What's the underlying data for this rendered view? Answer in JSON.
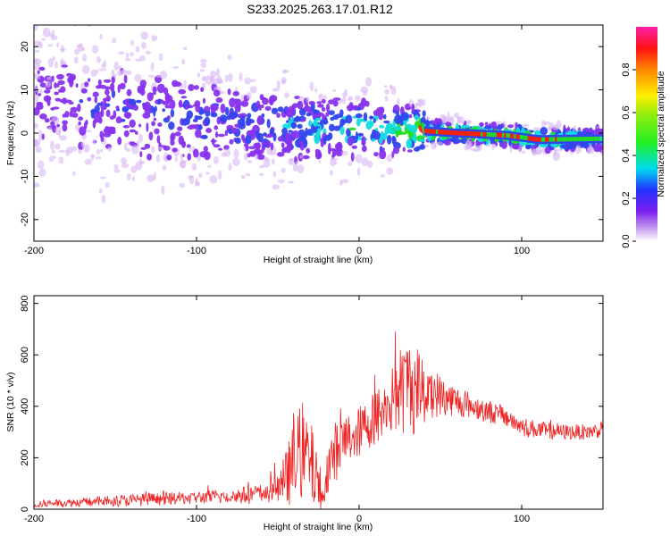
{
  "title": "S233.2025.263.17.01.R12",
  "colors": {
    "line": "#ee2222",
    "frame": "#000000",
    "spec_ridge": "#ff2200",
    "spec_green": "#22dd22",
    "spec_cyan": "#11dddd",
    "spec_blue": "#3344ee",
    "spec_violet": "#8833ee",
    "spec_pale": "#d8b8f4"
  },
  "chart_data": [
    {
      "type": "heatmap",
      "xlabel": "Height of straight line (km)",
      "ylabel": "Frequency (Hz)",
      "xlim": [
        -200,
        150
      ],
      "ylim": [
        -25,
        25
      ],
      "xticks": [
        -200,
        -100,
        0,
        100
      ],
      "xtick_labels": [
        "-200",
        "-100",
        "0",
        "100"
      ],
      "yticks": [
        -20,
        -10,
        0,
        10,
        20
      ],
      "ytick_labels": [
        "-20",
        "-10",
        "0",
        "10",
        "20"
      ],
      "ridge": {
        "x": [
          -200,
          -150,
          -100,
          -60,
          -30,
          0,
          20,
          40,
          60,
          90,
          110,
          150
        ],
        "freq": [
          8,
          5,
          3,
          2,
          1,
          1,
          1,
          0.5,
          0,
          -0.5,
          -1.5,
          -1.3
        ],
        "peak_amplitude": [
          0.2,
          0.3,
          0.35,
          0.35,
          0.45,
          0.55,
          0.6,
          0.95,
          0.98,
          0.9,
          0.95,
          0.6
        ]
      },
      "colorbar": {
        "label": "Normalized spectral amplitude",
        "range": [
          0.0,
          1.0
        ],
        "ticks": [
          0.0,
          0.2,
          0.4,
          0.6,
          0.8
        ],
        "tick_labels": [
          "0.0",
          "0.2",
          "0.4",
          "0.6",
          "0.8"
        ]
      }
    },
    {
      "type": "line",
      "xlabel": "Height of straight line (km)",
      "ylabel": "SNR (10 * v/v)",
      "xlim": [
        -200,
        150
      ],
      "ylim": [
        0,
        830
      ],
      "xticks": [
        -200,
        -100,
        0,
        100
      ],
      "xtick_labels": [
        "-200",
        "-100",
        "0",
        "100"
      ],
      "yticks": [
        0,
        200,
        400,
        600,
        800
      ],
      "ytick_labels": [
        "0",
        "200",
        "400",
        "600",
        "800"
      ],
      "series": [
        {
          "x": [
            -200,
            -180,
            -160,
            -140,
            -120,
            -100,
            -80,
            -70,
            -60,
            -50,
            -45,
            -40,
            -35,
            -30,
            -25,
            -22,
            -20,
            -15,
            -10,
            -5,
            0,
            5,
            10,
            15,
            20,
            25,
            30,
            35,
            40,
            45,
            50,
            60,
            70,
            80,
            90,
            100,
            110,
            120,
            130,
            140,
            150
          ],
          "y": [
            20,
            25,
            30,
            35,
            40,
            45,
            50,
            55,
            60,
            80,
            120,
            180,
            230,
            180,
            100,
            40,
            150,
            220,
            260,
            280,
            300,
            330,
            360,
            380,
            420,
            460,
            480,
            470,
            460,
            460,
            440,
            420,
            400,
            380,
            360,
            320,
            310,
            300,
            300,
            300,
            310
          ],
          "y_spread": [
            15,
            15,
            20,
            25,
            25,
            25,
            30,
            35,
            40,
            60,
            110,
            160,
            200,
            170,
            120,
            40,
            90,
            120,
            110,
            100,
            100,
            100,
            110,
            120,
            130,
            170,
            200,
            180,
            150,
            110,
            80,
            60,
            50,
            45,
            40,
            40,
            35,
            30,
            30,
            30,
            30
          ]
        }
      ]
    }
  ]
}
